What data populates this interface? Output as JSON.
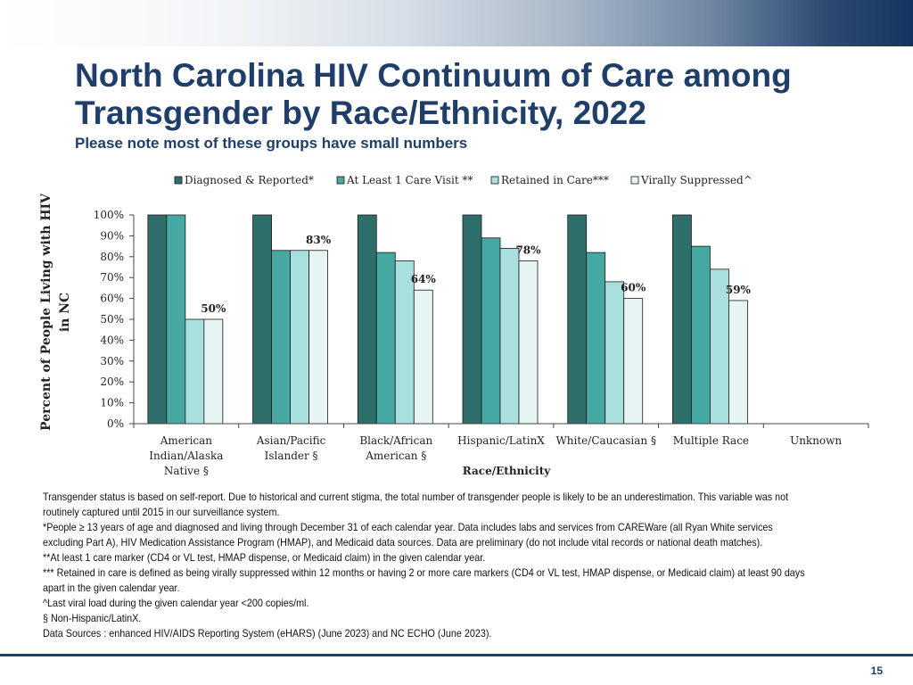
{
  "slide": {
    "title": "North Carolina HIV Continuum of Care among Transgender by Race/Ethnicity, 2022",
    "subtitle": "Please note most of these groups have small numbers",
    "page_number": "15"
  },
  "colors": {
    "title": "#1f3e69",
    "series": [
      "#2e6e6b",
      "#45a8a3",
      "#a9dfdc",
      "#e6f5f4"
    ],
    "bar_stroke": "#1a1a1a"
  },
  "chart_data": {
    "type": "bar",
    "title": "",
    "xlabel": "Race/Ethnicity",
    "ylabel": "Percent of People Living with HIV in NC",
    "ylim": [
      0,
      100
    ],
    "yticks": [
      "0%",
      "10%",
      "20%",
      "30%",
      "40%",
      "50%",
      "60%",
      "70%",
      "80%",
      "90%",
      "100%"
    ],
    "legend_position": "top",
    "categories": [
      [
        "American",
        "Indian/Alaska",
        "Native §"
      ],
      [
        "Asian/Pacific",
        "Islander §"
      ],
      [
        "Black/African",
        "American §"
      ],
      [
        "Hispanic/LatinX"
      ],
      [
        "White/Caucasian §"
      ],
      [
        "Multiple Race"
      ],
      [
        "Unknown"
      ]
    ],
    "series": [
      {
        "name": "Diagnosed & Reported*",
        "values": [
          100,
          100,
          100,
          100,
          100,
          100,
          null
        ]
      },
      {
        "name": "At Least 1 Care Visit **",
        "values": [
          100,
          83,
          82,
          89,
          82,
          85,
          null
        ]
      },
      {
        "name": "Retained in Care***",
        "values": [
          50,
          83,
          78,
          84,
          68,
          74,
          null
        ]
      },
      {
        "name": "Virally Suppressed^",
        "values": [
          50,
          83,
          64,
          78,
          60,
          59,
          null
        ]
      }
    ],
    "data_labels": [
      "50%",
      "83%",
      "64%",
      "78%",
      "60%",
      "59%",
      ""
    ]
  },
  "footnotes": [
    "Transgender status is based on self-report. Due to historical and current stigma, the total number of transgender people is likely to be an underestimation. This variable was not routinely captured until 2015 in our surveillance system.",
    "*People ≥ 13 years of age and diagnosed and living through December 31 of each calendar year. Data includes labs and services from CAREWare (all Ryan White services excluding Part A), HIV Medication Assistance Program (HMAP), and Medicaid data sources. Data are preliminary (do not include vital records or national death matches).",
    "**At least 1 care marker (CD4 or VL test, HMAP dispense, or Medicaid claim) in the given calendar year.",
    "*** Retained in care is defined as being virally suppressed within 12 months or having 2 or more care markers (CD4 or VL test, HMAP dispense, or Medicaid claim) at least 90 days apart in the given calendar year.",
    "^Last viral load during the given calendar year <200 copies/ml.",
    "§ Non-Hispanic/LatinX.",
    "Data Sources : enhanced HIV/AIDS Reporting System (eHARS) (June 2023) and NC ECHO (June 2023)."
  ]
}
